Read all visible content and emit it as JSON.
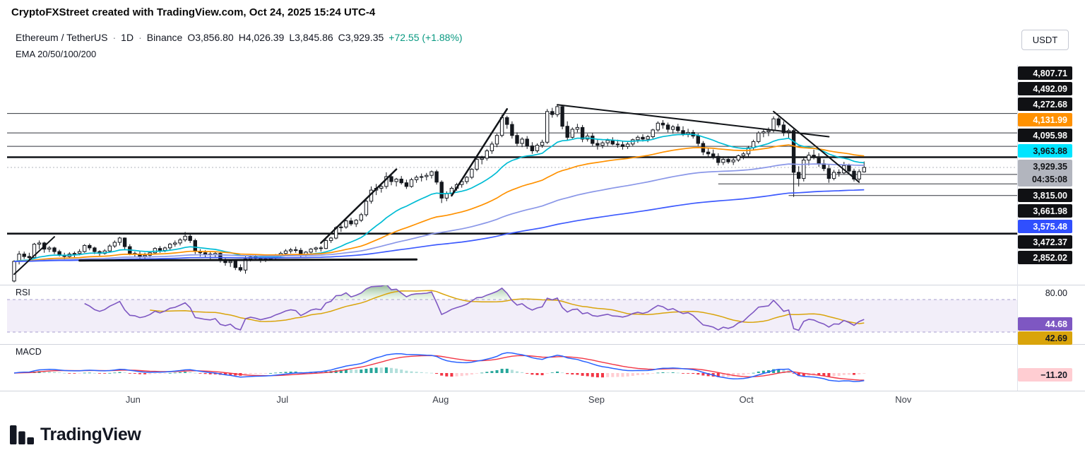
{
  "attribution": "CryptoFXStreet created with TradingView.com, Oct 24, 2025 15:24 UTC-4",
  "header": {
    "symbol": "Ethereum / TetherUS",
    "separator": "·",
    "interval": "1D",
    "exchange": "Binance",
    "ohlc": {
      "o_label": "O",
      "o_value": "3,856.80",
      "h_label": "H",
      "h_value": "4,026.39",
      "l_label": "L",
      "l_value": "3,845.86",
      "c_label": "C",
      "c_value": "3,929.35",
      "change": "+72.55 (+1.88%)"
    },
    "indicator": "EMA 20/50/100/200"
  },
  "currency_button": "USDT",
  "price_scale": {
    "labels": [
      {
        "text": "4,807.71",
        "bg": "#101114",
        "fg": "#ffffff",
        "kind": "level-4807"
      },
      {
        "text": "4,492.09",
        "bg": "#101114",
        "fg": "#ffffff",
        "kind": "level-4492"
      },
      {
        "text": "4,272.68",
        "bg": "#101114",
        "fg": "#ffffff",
        "kind": "level-4272"
      },
      {
        "text": "4,131.99",
        "bg": "#FF9100",
        "fg": "#ffffff",
        "kind": "ema50-value"
      },
      {
        "text": "4,095.98",
        "bg": "#101114",
        "fg": "#ffffff",
        "kind": "level-4095"
      },
      {
        "text": "3,963.88",
        "bg": "#00E5FF",
        "fg": "#101114",
        "kind": "ema20-value"
      },
      {
        "text": "3,929.35",
        "sub": "04:35:08",
        "bg": "#B2B5BE",
        "fg": "#101114",
        "kind": "last-price-countdown"
      },
      {
        "text": "3,815.00",
        "bg": "#101114",
        "fg": "#ffffff",
        "kind": "level-3815"
      },
      {
        "text": "3,661.98",
        "bg": "#101114",
        "fg": "#ffffff",
        "kind": "level-3661"
      },
      {
        "text": "3,575.48",
        "bg": "#304FFE",
        "fg": "#ffffff",
        "kind": "ema200-value"
      },
      {
        "text": "3,472.37",
        "bg": "#101114",
        "fg": "#ffffff",
        "kind": "level-3472"
      },
      {
        "text": "2,852.02",
        "bg": "#101114",
        "fg": "#ffffff",
        "kind": "level-2852"
      }
    ]
  },
  "rsi": {
    "label": "RSI",
    "level_label": "80.00",
    "value_label": "44.68",
    "ma_label": "42.69"
  },
  "macd": {
    "label": "MACD",
    "value_label": "−11.20"
  },
  "footer": {
    "logo_text": "TradingView"
  },
  "chart_data": {
    "type": "candlestick",
    "symbol": "Ethereum / TetherUS",
    "interval": "1D",
    "exchange": "Binance",
    "last_bar": {
      "open": 3856.8,
      "high": 4026.39,
      "low": 3845.86,
      "close": 3929.35,
      "change_text": "+72.55 (+1.88%)"
    },
    "y_visible_range": [
      2050,
      5560
    ],
    "x_ticks": [
      {
        "label": "Jun",
        "index": 24
      },
      {
        "label": "Jul",
        "index": 54
      },
      {
        "label": "Aug",
        "index": 85
      },
      {
        "label": "Sep",
        "index": 116
      },
      {
        "label": "Oct",
        "index": 146
      },
      {
        "label": "Nov",
        "index": 177
      }
    ],
    "ohlc": [
      [
        2080,
        2420,
        2060,
        2400
      ],
      [
        2400,
        2570,
        2350,
        2520
      ],
      [
        2520,
        2560,
        2440,
        2480
      ],
      [
        2480,
        2540,
        2430,
        2460
      ],
      [
        2460,
        2700,
        2440,
        2680
      ],
      [
        2680,
        2740,
        2600,
        2700
      ],
      [
        2700,
        2720,
        2540,
        2600
      ],
      [
        2600,
        2650,
        2550,
        2620
      ],
      [
        2620,
        2640,
        2520,
        2560
      ],
      [
        2560,
        2590,
        2480,
        2500
      ],
      [
        2500,
        2540,
        2420,
        2480
      ],
      [
        2480,
        2550,
        2460,
        2520
      ],
      [
        2520,
        2560,
        2460,
        2530
      ],
      [
        2530,
        2600,
        2500,
        2560
      ],
      [
        2560,
        2680,
        2540,
        2660
      ],
      [
        2660,
        2690,
        2580,
        2620
      ],
      [
        2620,
        2640,
        2520,
        2560
      ],
      [
        2560,
        2580,
        2480,
        2530
      ],
      [
        2530,
        2600,
        2510,
        2570
      ],
      [
        2570,
        2680,
        2550,
        2650
      ],
      [
        2650,
        2740,
        2620,
        2710
      ],
      [
        2710,
        2800,
        2660,
        2780
      ],
      [
        2780,
        2790,
        2600,
        2640
      ],
      [
        2640,
        2680,
        2500,
        2530
      ],
      [
        2530,
        2560,
        2480,
        2520
      ],
      [
        2520,
        2570,
        2450,
        2480
      ],
      [
        2480,
        2540,
        2440,
        2500
      ],
      [
        2500,
        2560,
        2460,
        2540
      ],
      [
        2540,
        2630,
        2510,
        2610
      ],
      [
        2610,
        2650,
        2540,
        2580
      ],
      [
        2580,
        2640,
        2550,
        2620
      ],
      [
        2620,
        2700,
        2590,
        2680
      ],
      [
        2680,
        2740,
        2640,
        2700
      ],
      [
        2700,
        2780,
        2660,
        2750
      ],
      [
        2750,
        2880,
        2720,
        2810
      ],
      [
        2810,
        2850,
        2700,
        2740
      ],
      [
        2740,
        2770,
        2520,
        2560
      ],
      [
        2560,
        2600,
        2480,
        2540
      ],
      [
        2540,
        2580,
        2460,
        2520
      ],
      [
        2520,
        2570,
        2440,
        2510
      ],
      [
        2510,
        2560,
        2460,
        2530
      ],
      [
        2530,
        2550,
        2380,
        2410
      ],
      [
        2410,
        2450,
        2330,
        2380
      ],
      [
        2380,
        2430,
        2310,
        2400
      ],
      [
        2400,
        2440,
        2260,
        2300
      ],
      [
        2300,
        2350,
        2230,
        2260
      ],
      [
        2260,
        2480,
        2200,
        2440
      ],
      [
        2440,
        2500,
        2400,
        2470
      ],
      [
        2470,
        2510,
        2420,
        2450
      ],
      [
        2450,
        2480,
        2380,
        2420
      ],
      [
        2420,
        2470,
        2390,
        2440
      ],
      [
        2440,
        2490,
        2410,
        2460
      ],
      [
        2460,
        2520,
        2430,
        2500
      ],
      [
        2500,
        2560,
        2470,
        2530
      ],
      [
        2530,
        2600,
        2480,
        2570
      ],
      [
        2570,
        2620,
        2530,
        2590
      ],
      [
        2590,
        2640,
        2540,
        2580
      ],
      [
        2580,
        2620,
        2470,
        2510
      ],
      [
        2510,
        2570,
        2480,
        2550
      ],
      [
        2550,
        2620,
        2530,
        2600
      ],
      [
        2600,
        2640,
        2550,
        2620
      ],
      [
        2620,
        2650,
        2560,
        2610
      ],
      [
        2610,
        2760,
        2600,
        2740
      ],
      [
        2740,
        2800,
        2700,
        2780
      ],
      [
        2780,
        2970,
        2760,
        2950
      ],
      [
        2950,
        3010,
        2880,
        2960
      ],
      [
        2960,
        3080,
        2930,
        3060
      ],
      [
        3060,
        3110,
        2980,
        3010
      ],
      [
        3010,
        3090,
        2960,
        3070
      ],
      [
        3070,
        3190,
        3040,
        3160
      ],
      [
        3160,
        3420,
        3130,
        3380
      ],
      [
        3380,
        3620,
        3340,
        3560
      ],
      [
        3560,
        3660,
        3480,
        3590
      ],
      [
        3590,
        3680,
        3520,
        3620
      ],
      [
        3620,
        3850,
        3580,
        3780
      ],
      [
        3780,
        3820,
        3640,
        3700
      ],
      [
        3700,
        3760,
        3620,
        3740
      ],
      [
        3740,
        3790,
        3650,
        3680
      ],
      [
        3680,
        3730,
        3580,
        3620
      ],
      [
        3620,
        3760,
        3600,
        3730
      ],
      [
        3730,
        3800,
        3680,
        3770
      ],
      [
        3770,
        3830,
        3700,
        3780
      ],
      [
        3780,
        3840,
        3720,
        3800
      ],
      [
        3800,
        3880,
        3750,
        3860
      ],
      [
        3860,
        3890,
        3650,
        3690
      ],
      [
        3690,
        3720,
        3350,
        3430
      ],
      [
        3430,
        3540,
        3380,
        3500
      ],
      [
        3500,
        3620,
        3460,
        3590
      ],
      [
        3590,
        3680,
        3550,
        3650
      ],
      [
        3650,
        3720,
        3600,
        3700
      ],
      [
        3700,
        3790,
        3660,
        3770
      ],
      [
        3770,
        3920,
        3740,
        3900
      ],
      [
        3900,
        4090,
        3870,
        4060
      ],
      [
        4060,
        4120,
        3980,
        4080
      ],
      [
        4080,
        4230,
        4040,
        4200
      ],
      [
        4200,
        4350,
        4150,
        4310
      ],
      [
        4310,
        4480,
        4260,
        4450
      ],
      [
        4450,
        4790,
        4420,
        4740
      ],
      [
        4740,
        4770,
        4560,
        4630
      ],
      [
        4630,
        4680,
        4400,
        4450
      ],
      [
        4450,
        4500,
        4280,
        4320
      ],
      [
        4320,
        4420,
        4260,
        4390
      ],
      [
        4390,
        4440,
        4230,
        4280
      ],
      [
        4280,
        4340,
        4150,
        4200
      ],
      [
        4200,
        4320,
        4170,
        4290
      ],
      [
        4290,
        4380,
        4250,
        4340
      ],
      [
        4340,
        4880,
        4310,
        4840
      ],
      [
        4840,
        4900,
        4740,
        4790
      ],
      [
        4790,
        4953,
        4750,
        4920
      ],
      [
        4920,
        4940,
        4550,
        4600
      ],
      [
        4600,
        4680,
        4370,
        4420
      ],
      [
        4420,
        4580,
        4400,
        4550
      ],
      [
        4550,
        4640,
        4500,
        4580
      ],
      [
        4580,
        4620,
        4340,
        4390
      ],
      [
        4390,
        4480,
        4350,
        4440
      ],
      [
        4440,
        4490,
        4280,
        4320
      ],
      [
        4320,
        4390,
        4220,
        4290
      ],
      [
        4290,
        4360,
        4240,
        4330
      ],
      [
        4330,
        4400,
        4280,
        4370
      ],
      [
        4370,
        4420,
        4290,
        4310
      ],
      [
        4310,
        4380,
        4250,
        4300
      ],
      [
        4300,
        4350,
        4220,
        4270
      ],
      [
        4270,
        4340,
        4230,
        4310
      ],
      [
        4310,
        4400,
        4280,
        4380
      ],
      [
        4380,
        4450,
        4330,
        4420
      ],
      [
        4420,
        4470,
        4350,
        4390
      ],
      [
        4390,
        4460,
        4340,
        4430
      ],
      [
        4430,
        4560,
        4400,
        4540
      ],
      [
        4540,
        4680,
        4510,
        4650
      ],
      [
        4650,
        4700,
        4560,
        4620
      ],
      [
        4620,
        4660,
        4500,
        4550
      ],
      [
        4550,
        4620,
        4480,
        4590
      ],
      [
        4590,
        4640,
        4500,
        4530
      ],
      [
        4530,
        4600,
        4440,
        4480
      ],
      [
        4480,
        4560,
        4420,
        4500
      ],
      [
        4500,
        4540,
        4400,
        4440
      ],
      [
        4440,
        4480,
        4280,
        4320
      ],
      [
        4320,
        4360,
        4130,
        4180
      ],
      [
        4180,
        4250,
        4090,
        4150
      ],
      [
        4150,
        4220,
        4060,
        4110
      ],
      [
        4110,
        4160,
        3960,
        4010
      ],
      [
        4010,
        4090,
        3970,
        4060
      ],
      [
        4060,
        4110,
        3990,
        4020
      ],
      [
        4020,
        4080,
        3970,
        4050
      ],
      [
        4050,
        4140,
        4020,
        4120
      ],
      [
        4120,
        4180,
        4060,
        4150
      ],
      [
        4150,
        4280,
        4100,
        4250
      ],
      [
        4250,
        4380,
        4210,
        4350
      ],
      [
        4350,
        4520,
        4320,
        4490
      ],
      [
        4490,
        4550,
        4420,
        4510
      ],
      [
        4510,
        4580,
        4440,
        4530
      ],
      [
        4530,
        4760,
        4500,
        4720
      ],
      [
        4720,
        4750,
        4580,
        4620
      ],
      [
        4620,
        4680,
        4440,
        4490
      ],
      [
        4490,
        4560,
        4400,
        4530
      ],
      [
        4530,
        4560,
        3450,
        3850
      ],
      [
        3850,
        3950,
        3620,
        3750
      ],
      [
        3750,
        4090,
        3700,
        4050
      ],
      [
        4050,
        4180,
        3960,
        4130
      ],
      [
        4130,
        4220,
        4060,
        4100
      ],
      [
        4100,
        4160,
        3940,
        3990
      ],
      [
        3990,
        4060,
        3870,
        3910
      ],
      [
        3910,
        3980,
        3680,
        3750
      ],
      [
        3750,
        3890,
        3720,
        3850
      ],
      [
        3850,
        3900,
        3780,
        3840
      ],
      [
        3840,
        4020,
        3820,
        3960
      ],
      [
        3960,
        3990,
        3820,
        3870
      ],
      [
        3870,
        3910,
        3700,
        3740
      ],
      [
        3740,
        3900,
        3710,
        3860
      ],
      [
        3856.8,
        4026.39,
        3845.86,
        3929.35
      ]
    ],
    "emas": [
      {
        "period": 20,
        "color": "#00BCD4"
      },
      {
        "period": 50,
        "color": "#FF9100"
      },
      {
        "period": 100,
        "color": "#8A97E8"
      },
      {
        "period": 200,
        "color": "#3D5AFE"
      }
    ],
    "levels": [
      {
        "price": 4807.71,
        "thick": false
      },
      {
        "price": 4492.09,
        "thick": false
      },
      {
        "price": 4272.68,
        "thick": false
      },
      {
        "price": 4095.98,
        "thick": true
      },
      {
        "price": 3815.0,
        "thick": false,
        "start_index": 140
      },
      {
        "price": 3661.98,
        "thick": false,
        "start_index": 140
      },
      {
        "price": 3472.37,
        "thick": false,
        "start_index": 154
      },
      {
        "price": 2852.02,
        "thick": true
      }
    ],
    "trendlines": [
      {
        "i1": 0,
        "p1": 2190,
        "i2": 8,
        "p2": 2800,
        "w": 2
      },
      {
        "i1": 13,
        "p1": 2415,
        "i2": 80,
        "p2": 2432,
        "w": 3
      },
      {
        "i1": 61,
        "p1": 2700,
        "i2": 76,
        "p2": 3900,
        "w": 2.5
      },
      {
        "i1": 87,
        "p1": 3470,
        "i2": 98,
        "p2": 4880,
        "w": 2.5
      },
      {
        "i1": 108,
        "p1": 4950,
        "i2": 162,
        "p2": 4430,
        "w": 2
      },
      {
        "i1": 151,
        "p1": 4840,
        "i2": 168,
        "p2": 3690,
        "w": 2
      }
    ],
    "rsi": {
      "period": 14,
      "ma_period": 14,
      "upper_band": 70,
      "lower_band": 30,
      "line_color": "#7E57C2",
      "ma_color": "#D9A40B",
      "last_value": 44.68,
      "last_ma": 42.69
    },
    "macd": {
      "fast": 12,
      "slow": 26,
      "signal": 9,
      "macd_color": "#2962FF",
      "signal_color": "#F23645",
      "last_histogram": -11.2
    }
  }
}
